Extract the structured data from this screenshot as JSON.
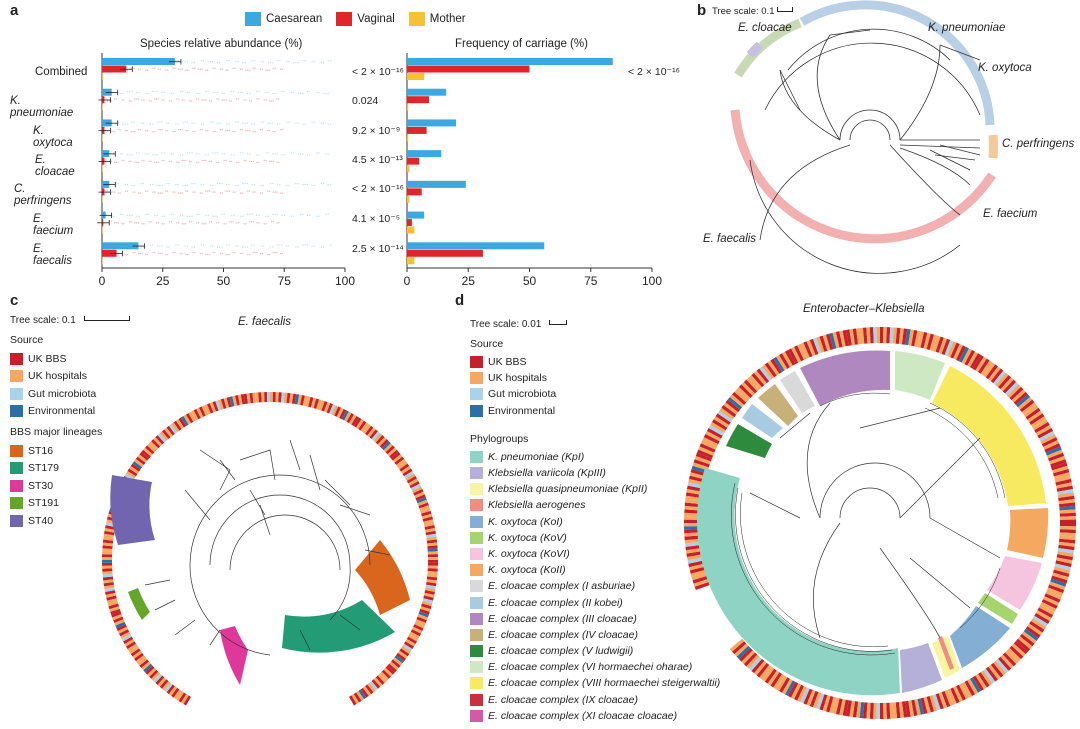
{
  "panels": {
    "a": {
      "letter": "a",
      "legend": [
        {
          "label": "Caesarean",
          "color": "#3ba9e0"
        },
        {
          "label": "Vaginal",
          "color": "#e0262b"
        },
        {
          "label": "Mother",
          "color": "#f4c232"
        }
      ],
      "pvalues": [
        "< 2 × 10⁻¹⁶",
        "0.024",
        "9.2 × 10⁻⁹",
        "4.5 × 10⁻¹³",
        "< 2 × 10⁻¹⁶",
        "4.1 × 10⁻⁵",
        "2.5 × 10⁻¹⁴"
      ],
      "pvalue_freq_combined": "< 2 × 10⁻¹⁶"
    },
    "b": {
      "letter": "b",
      "tree_scale": "Tree scale: 0.1",
      "clade_labels": [
        "E. cloacae",
        "K. pneumoniae",
        "K. oxytoca",
        "C. perfringens",
        "E. faecium",
        "E. faecalis"
      ]
    },
    "c": {
      "letter": "c",
      "tree_scale": "Tree scale: 0.1",
      "title": "E. faecalis",
      "source_title": "Source",
      "source_items": [
        {
          "label": "UK BBS",
          "color": "#c8202a"
        },
        {
          "label": "UK hospitals",
          "color": "#f4a862"
        },
        {
          "label": "Gut microbiota",
          "color": "#a9d3ea"
        },
        {
          "label": "Environmental",
          "color": "#2e6ea6"
        }
      ],
      "lineage_title": "BBS major lineages",
      "lineage_items": [
        {
          "label": "ST16",
          "color": "#d9661c"
        },
        {
          "label": "ST179",
          "color": "#239b74"
        },
        {
          "label": "ST30",
          "color": "#e0389a"
        },
        {
          "label": "ST191",
          "color": "#64a62a"
        },
        {
          "label": "ST40",
          "color": "#7265b0"
        }
      ]
    },
    "d": {
      "letter": "d",
      "tree_scale": "Tree scale: 0.01",
      "title": "Enterobacter–Klebsiella",
      "source_title": "Source",
      "source_items": [
        {
          "label": "UK BBS",
          "color": "#c8202a"
        },
        {
          "label": "UK hospitals",
          "color": "#f4a862"
        },
        {
          "label": "Gut microbiota",
          "color": "#a9d3ea"
        },
        {
          "label": "Environmental",
          "color": "#2e6ea6"
        }
      ],
      "phylo_title": "Phylogroups",
      "phylo_items": [
        {
          "label": "K. pneumoniae (KpI)",
          "color": "#8fd3c4"
        },
        {
          "label": "Klebsiella variicola (KpIII)",
          "color": "#b4b0d8"
        },
        {
          "label": "Klebsiella quasipneumoniae (KpII)",
          "color": "#f8f4a0"
        },
        {
          "label": "Klebsiella aerogenes",
          "color": "#f08c80"
        },
        {
          "label": "K. oxytoca (KoI)",
          "color": "#85aed4"
        },
        {
          "label": "K. oxytoca (KoV)",
          "color": "#a8d470"
        },
        {
          "label": "K. oxytoca (KoVI)",
          "color": "#f5c4de"
        },
        {
          "label": "K. oxytoca (KoII)",
          "color": "#f4a860"
        },
        {
          "label": "E. cloacae complex (I asburiae)",
          "color": "#d9d9d9"
        },
        {
          "label": "E. cloacae complex (II kobei)",
          "color": "#a9cbe2"
        },
        {
          "label": "E. cloacae complex (III cloacae)",
          "color": "#b088c0"
        },
        {
          "label": "E. cloacae complex (IV cloacae)",
          "color": "#c8b079"
        },
        {
          "label": "E. cloacae complex (V ludwigii)",
          "color": "#2e8b3e"
        },
        {
          "label": "E. cloacae complex (VI hormaechei oharae)",
          "color": "#cfe8c4"
        },
        {
          "label": "E. cloacae complex (VIII hormaechei steigerwaltii)",
          "color": "#f8ea60"
        },
        {
          "label": "E. cloacae complex (IX cloacae)",
          "color": "#c83040"
        },
        {
          "label": "E. cloacae complex (XI cloacae cloacae)",
          "color": "#d35aa8"
        }
      ]
    }
  },
  "chart_data": [
    {
      "type": "bar",
      "title": "Species relative abundance (%)",
      "categories": [
        "Combined",
        "K. pneumoniae",
        "K. oxytoca",
        "E. cloacae",
        "C. perfringens",
        "E. faecium",
        "E. faecalis"
      ],
      "series": [
        {
          "name": "Caesarean",
          "values": [
            30,
            4,
            4,
            3,
            3,
            1.5,
            15
          ]
        },
        {
          "name": "Vaginal",
          "values": [
            10,
            1,
            1,
            1,
            1,
            0.5,
            6
          ]
        },
        {
          "name": "Mother",
          "values": [
            0.5,
            0.1,
            0.1,
            0.1,
            0.1,
            0.1,
            0.3
          ]
        }
      ],
      "xlim": [
        0,
        100
      ],
      "xticks": [
        "0",
        "25",
        "50",
        "75",
        "100"
      ],
      "orientation": "horizontal",
      "grid": false
    },
    {
      "type": "bar",
      "title": "Frequency of carriage (%)",
      "categories": [
        "Combined",
        "K. pneumoniae",
        "K. oxytoca",
        "E. cloacae",
        "C. perfringens",
        "E. faecium",
        "E. faecalis"
      ],
      "series": [
        {
          "name": "Caesarean",
          "values": [
            84,
            16,
            20,
            14,
            24,
            7,
            56
          ]
        },
        {
          "name": "Vaginal",
          "values": [
            50,
            9,
            8,
            5,
            6,
            2,
            31
          ]
        },
        {
          "name": "Mother",
          "values": [
            7,
            0.5,
            0.5,
            1,
            1,
            3,
            3
          ]
        }
      ],
      "xlim": [
        0,
        100
      ],
      "xticks": [
        "0",
        "25",
        "50",
        "75",
        "100"
      ],
      "orientation": "horizontal",
      "grid": false
    }
  ]
}
